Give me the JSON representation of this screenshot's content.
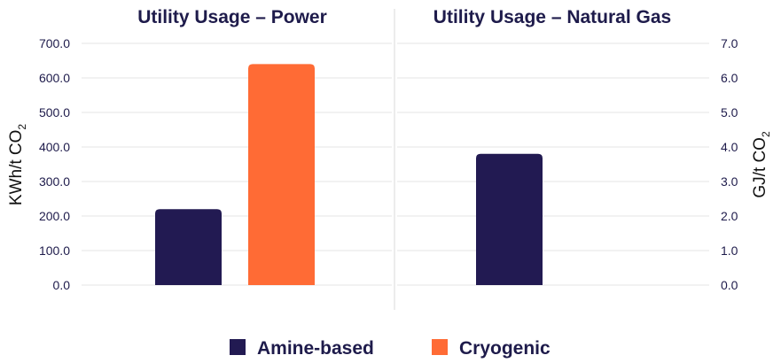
{
  "chart_data": [
    {
      "type": "bar",
      "title": "Utility Usage – Power",
      "ylabel": "KWh/t CO",
      "ylabel_subscript": "2",
      "ylabel_side": "left",
      "ylim": [
        0,
        700
      ],
      "yticks": [
        "0.0",
        "100.0",
        "200.0",
        "300.0",
        "400.0",
        "500.0",
        "600.0",
        "700.0"
      ],
      "grid": true,
      "categories": [
        ""
      ],
      "series": [
        {
          "name": "Amine-based",
          "values": [
            220
          ]
        },
        {
          "name": "Cryogenic",
          "values": [
            640
          ]
        }
      ]
    },
    {
      "type": "bar",
      "title": "Utility Usage – Natural Gas",
      "ylabel": "GJ/t CO",
      "ylabel_subscript": "2",
      "ylabel_side": "right",
      "ylim": [
        0,
        7
      ],
      "yticks": [
        "0.0",
        "1.0",
        "2.0",
        "3.0",
        "4.0",
        "5.0",
        "6.0",
        "7.0"
      ],
      "grid": true,
      "categories": [
        ""
      ],
      "series": [
        {
          "name": "Amine-based",
          "values": [
            3.8
          ]
        }
      ]
    }
  ],
  "legend": {
    "placement": "bottom-center",
    "items": [
      {
        "label": "Amine-based",
        "color": "#221a52"
      },
      {
        "label": "Cryogenic",
        "color": "#ff6b35"
      }
    ]
  },
  "colors": {
    "Amine-based": "#221a52",
    "Cryogenic": "#ff6b35",
    "gridline": "#e5e5e5",
    "divider": "#d8d8d8"
  }
}
